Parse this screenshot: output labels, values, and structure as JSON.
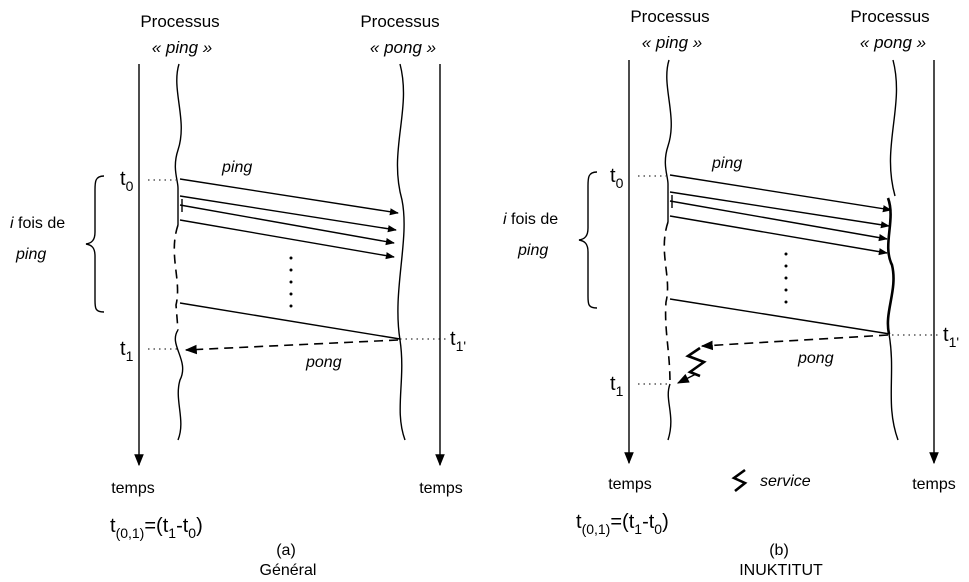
{
  "panel_a": {
    "ping_process": {
      "title": "Processus",
      "name": "« ping »"
    },
    "pong_process": {
      "title": "Processus",
      "name": "« pong »"
    },
    "ping_label": "ping",
    "pong_label": "pong",
    "repeat_label_1": "i fois de",
    "repeat_label_i": "i",
    "repeat_label_fois": " fois de",
    "repeat_label_2": "ping",
    "t0": {
      "base": "t",
      "sub": "0"
    },
    "t1": {
      "base": "t",
      "sub": "1"
    },
    "t1p": {
      "base": "t",
      "sub": "1'"
    },
    "time_left": "temps",
    "time_right": "temps",
    "formula": {
      "t": "t",
      "sub1": "(0,1)",
      "eq": "=(t",
      "sub2": "1",
      "mid": "-t",
      "sub3": "0",
      "close": ")"
    },
    "caption_letter": "(a)",
    "caption_text": "Général"
  },
  "panel_b": {
    "ping_process": {
      "title": "Processus",
      "name": "« ping »"
    },
    "pong_process": {
      "title": "Processus",
      "name": "« pong »"
    },
    "ping_label": "ping",
    "pong_label": "pong",
    "repeat_label_i": "i",
    "repeat_label_fois": " fois de",
    "repeat_label_2": "ping",
    "t0": {
      "base": "t",
      "sub": "0"
    },
    "t1": {
      "base": "t",
      "sub": "1"
    },
    "t1p": {
      "base": "t",
      "sub": "1'"
    },
    "time_left": "temps",
    "time_right": "temps",
    "legend_service": "service",
    "formula": {
      "t": "t",
      "sub1": "(0,1)",
      "eq": "=(t",
      "sub2": "1",
      "mid": "-t",
      "sub3": "0",
      "close": ")"
    },
    "caption_letter": "(b)",
    "caption_text": "INUKTITUT"
  }
}
